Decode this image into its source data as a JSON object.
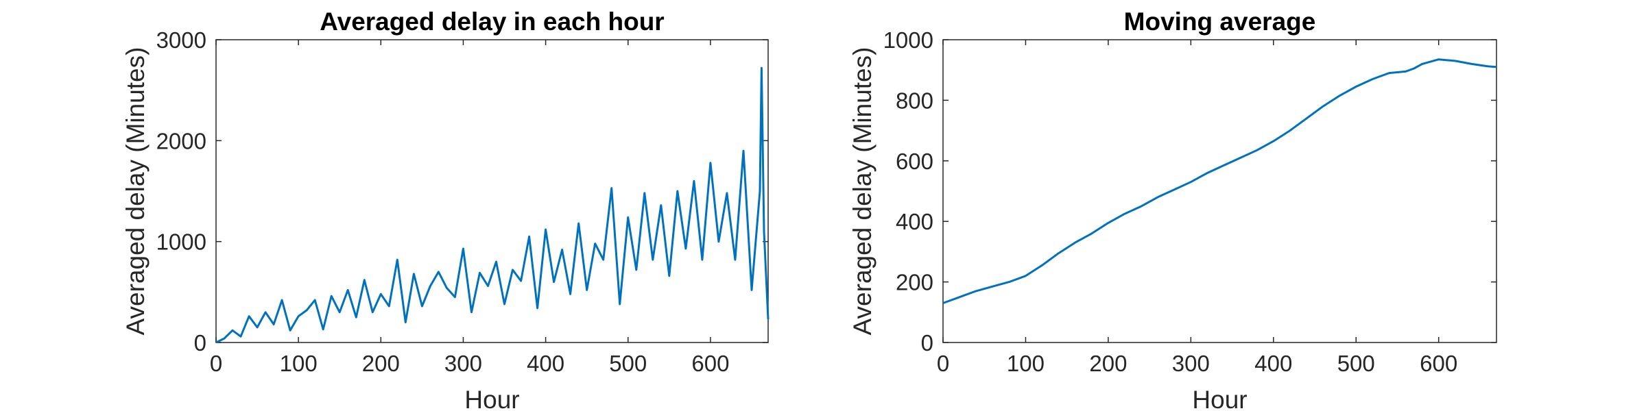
{
  "chart_data": [
    {
      "type": "line",
      "title": "Averaged delay in each hour",
      "xlabel": "Hour",
      "ylabel": "Averaged delay (Minutes)",
      "xlim": [
        0,
        670
      ],
      "ylim": [
        0,
        3000
      ],
      "xticks": [
        0,
        100,
        200,
        300,
        400,
        500,
        600
      ],
      "yticks": [
        0,
        1000,
        2000,
        3000
      ],
      "grid": false,
      "color": "#0072BD",
      "series": [
        {
          "x": [
            0,
            10,
            20,
            30,
            40,
            50,
            60,
            70,
            80,
            90,
            100,
            110,
            120,
            130,
            140,
            150,
            160,
            170,
            180,
            190,
            200,
            210,
            220,
            230,
            240,
            250,
            260,
            270,
            280,
            290,
            300,
            310,
            320,
            330,
            340,
            350,
            360,
            370,
            380,
            390,
            400,
            410,
            420,
            430,
            440,
            450,
            460,
            470,
            480,
            490,
            500,
            510,
            520,
            530,
            540,
            550,
            560,
            570,
            580,
            590,
            600,
            610,
            620,
            630,
            640,
            650,
            660,
            662,
            665,
            670
          ],
          "y": [
            0,
            40,
            120,
            60,
            260,
            150,
            300,
            180,
            420,
            120,
            260,
            320,
            420,
            130,
            460,
            300,
            520,
            250,
            620,
            300,
            480,
            360,
            820,
            200,
            680,
            360,
            560,
            700,
            540,
            450,
            930,
            300,
            690,
            560,
            800,
            380,
            720,
            610,
            1050,
            340,
            1120,
            600,
            920,
            480,
            1180,
            520,
            980,
            820,
            1530,
            380,
            1240,
            720,
            1480,
            820,
            1360,
            660,
            1500,
            930,
            1600,
            820,
            1780,
            1000,
            1480,
            820,
            1900,
            520,
            1500,
            2720,
            1100,
            230
          ]
        }
      ]
    },
    {
      "type": "line",
      "title": "Moving average",
      "xlabel": "Hour",
      "ylabel": "Averaged delay (Minutes)",
      "xlim": [
        0,
        670
      ],
      "ylim": [
        0,
        1000
      ],
      "xticks": [
        0,
        100,
        200,
        300,
        400,
        500,
        600
      ],
      "yticks": [
        0,
        200,
        400,
        600,
        800,
        1000
      ],
      "grid": false,
      "color": "#0072BD",
      "series": [
        {
          "x": [
            0,
            20,
            40,
            60,
            80,
            100,
            120,
            140,
            160,
            180,
            200,
            220,
            240,
            260,
            280,
            300,
            320,
            340,
            360,
            380,
            400,
            420,
            440,
            460,
            480,
            500,
            520,
            540,
            560,
            570,
            580,
            600,
            620,
            640,
            660,
            670
          ],
          "y": [
            130,
            150,
            170,
            185,
            200,
            220,
            255,
            295,
            330,
            360,
            395,
            425,
            450,
            480,
            505,
            530,
            560,
            585,
            610,
            635,
            665,
            700,
            740,
            780,
            815,
            845,
            870,
            890,
            895,
            905,
            920,
            935,
            930,
            920,
            912,
            910
          ]
        }
      ]
    }
  ]
}
